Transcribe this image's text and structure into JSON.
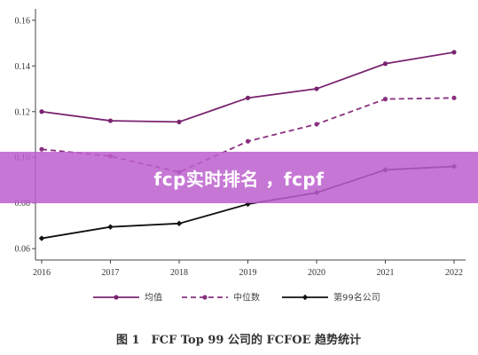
{
  "colors": {
    "series_avg": "#7a2470",
    "series_median": "#8a3080",
    "series_top99": "#111111",
    "axis": "#444444",
    "banner": "#bc5fce"
  },
  "banner": {
    "title": "fcp实时排名 ，fcpf"
  },
  "chart_data": {
    "type": "line",
    "x": [
      "2016",
      "2017",
      "2018",
      "2019",
      "2020",
      "2021",
      "2022"
    ],
    "ylim": [
      0.055,
      0.165
    ],
    "yticks": [
      "0.06",
      "0.08",
      "0.10",
      "0.12",
      "0.14",
      "0.16"
    ],
    "grid": false,
    "legend_position": "bottom",
    "series": [
      {
        "name": "均值",
        "style": "solid",
        "marker": "circle",
        "values": [
          0.12,
          0.116,
          0.1155,
          0.126,
          0.13,
          0.141,
          0.146
        ]
      },
      {
        "name": "中位数",
        "style": "dashed",
        "marker": "circle",
        "values": [
          0.1035,
          0.1005,
          0.0935,
          0.107,
          0.1145,
          0.1255,
          0.126
        ]
      },
      {
        "name": "第99名公司",
        "style": "solid",
        "marker": "diamond",
        "values": [
          0.0645,
          0.0695,
          0.071,
          0.0795,
          0.0845,
          0.0945,
          0.096
        ]
      }
    ],
    "caption": "图 1　FCF Top 99 公司的 FCFOE 趋势统计"
  }
}
